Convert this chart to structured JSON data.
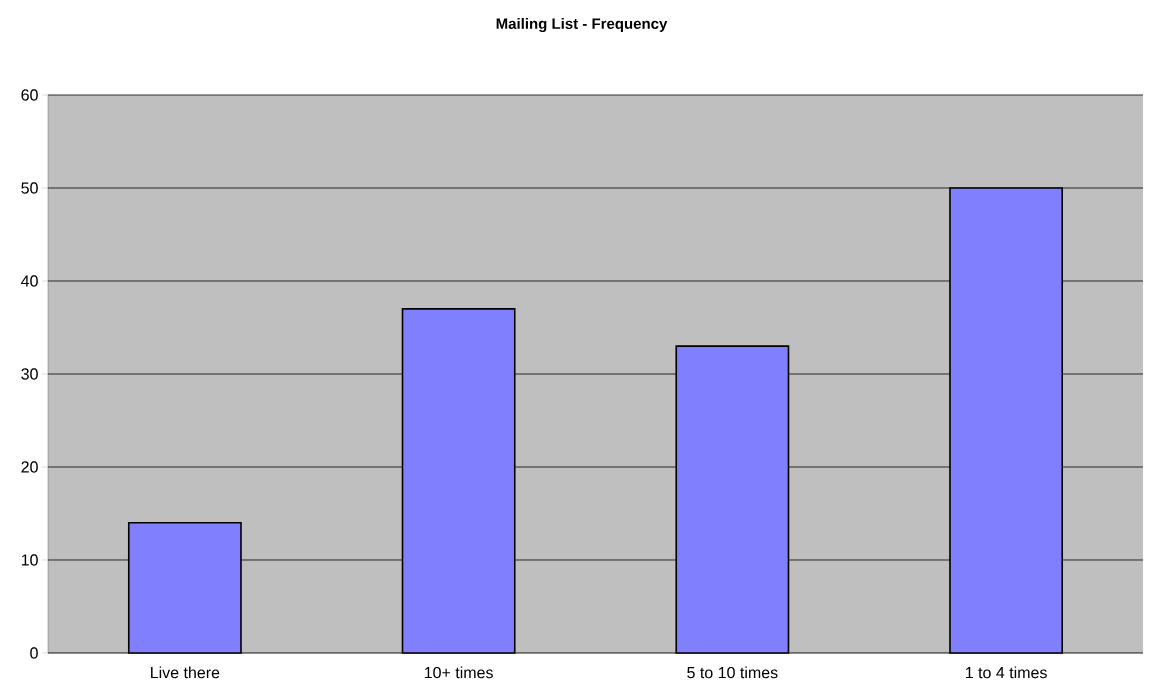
{
  "chart_data": {
    "type": "bar",
    "title": "Mailing List - Frequency",
    "categories": [
      "Live there",
      "10+ times",
      "5 to 10 times",
      "1 to 4 times"
    ],
    "values": [
      14,
      37,
      33,
      50
    ],
    "color": "#8080ff",
    "ylim": [
      0,
      60
    ],
    "yticks": [
      0,
      10,
      20,
      30,
      40,
      50,
      60
    ],
    "grid": "y"
  }
}
